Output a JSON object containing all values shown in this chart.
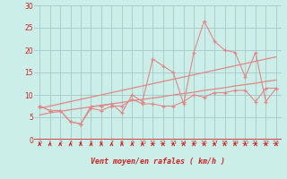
{
  "xlabel": "Vent moyen/en rafales ( km/h )",
  "background_color": "#cceee8",
  "grid_color": "#aacccc",
  "line_color": "#e08888",
  "arrow_color": "#cc2222",
  "ylim": [
    0,
    30
  ],
  "yticks": [
    0,
    5,
    10,
    15,
    20,
    25,
    30
  ],
  "xlim": [
    -0.5,
    23.5
  ],
  "xticks": [
    0,
    1,
    2,
    3,
    4,
    5,
    6,
    7,
    8,
    9,
    10,
    11,
    12,
    13,
    14,
    15,
    16,
    17,
    18,
    19,
    20,
    21,
    22,
    23
  ],
  "x": [
    0,
    1,
    2,
    3,
    4,
    5,
    6,
    7,
    8,
    9,
    10,
    11,
    12,
    13,
    14,
    15,
    16,
    17,
    18,
    19,
    20,
    21,
    22,
    23
  ],
  "y_mean": [
    7.5,
    6.5,
    6.5,
    4.0,
    3.5,
    7.0,
    6.5,
    7.5,
    7.5,
    9.0,
    8.0,
    8.0,
    7.5,
    7.5,
    8.5,
    10.0,
    9.5,
    10.5,
    10.5,
    11.0,
    11.0,
    8.5,
    11.5,
    11.5
  ],
  "y_gust": [
    7.5,
    6.5,
    6.5,
    4.0,
    3.5,
    7.5,
    7.5,
    8.0,
    6.0,
    10.0,
    8.5,
    18.0,
    16.5,
    15.0,
    8.0,
    19.5,
    26.5,
    22.0,
    20.0,
    19.5,
    14.0,
    19.5,
    8.5,
    11.5
  ],
  "y_trend_mean": [
    5.5,
    6.0,
    6.3,
    6.7,
    7.0,
    7.3,
    7.7,
    8.0,
    8.3,
    8.7,
    9.0,
    9.3,
    9.6,
    10.0,
    10.3,
    10.6,
    11.0,
    11.3,
    11.6,
    12.0,
    12.3,
    12.6,
    13.0,
    13.3
  ],
  "y_trend_gust": [
    7.0,
    7.5,
    8.0,
    8.5,
    9.0,
    9.5,
    10.0,
    10.5,
    11.0,
    11.5,
    12.0,
    12.5,
    13.0,
    13.5,
    14.0,
    14.5,
    15.0,
    15.5,
    16.0,
    16.5,
    17.0,
    17.5,
    18.0,
    18.5
  ]
}
